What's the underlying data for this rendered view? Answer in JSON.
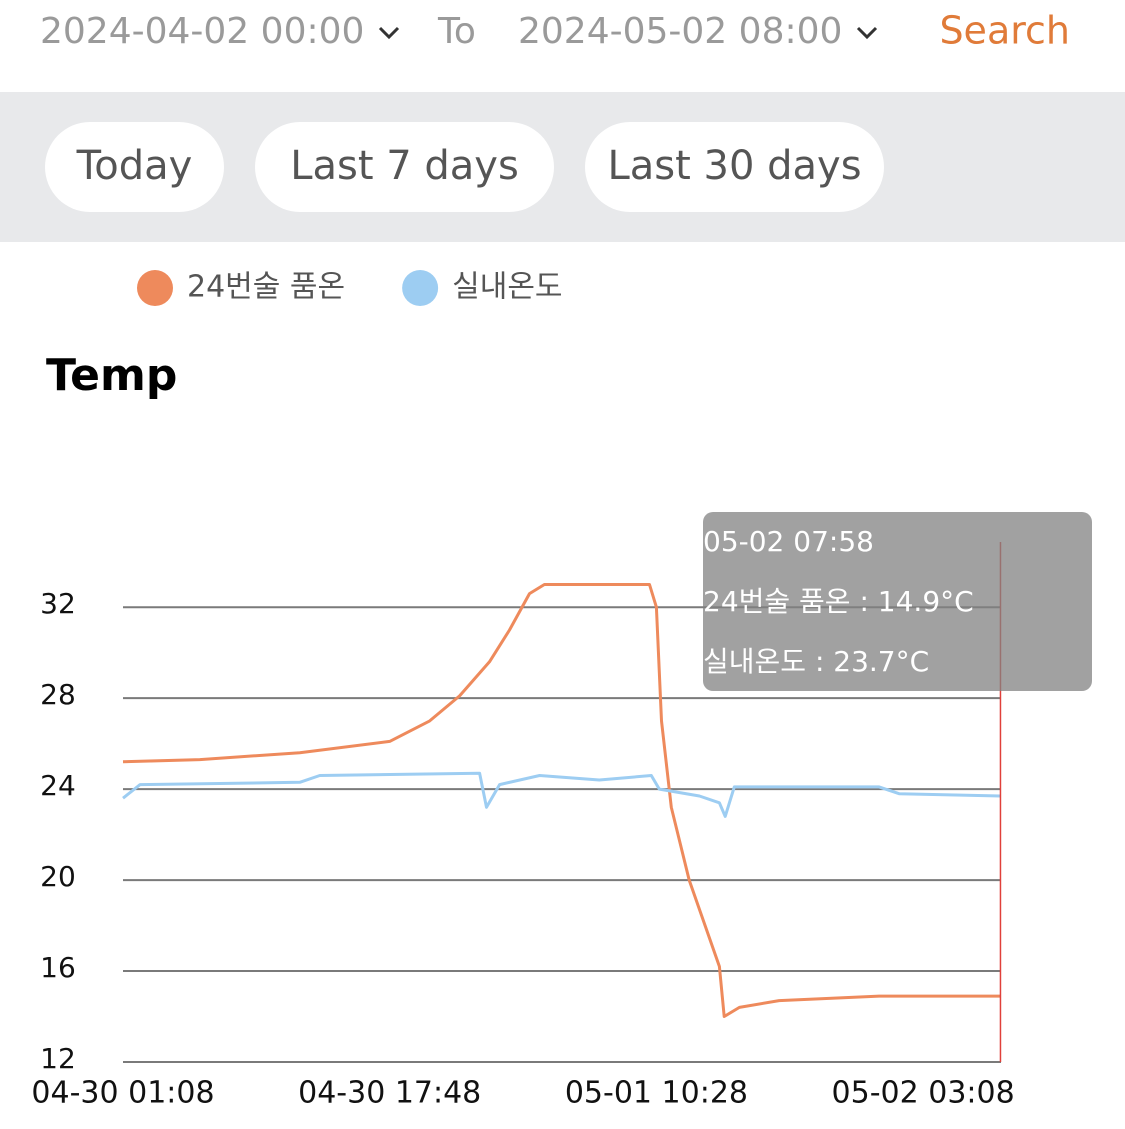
{
  "header": {
    "start": "2024-04-02 00:00",
    "to": "To",
    "end": "2024-05-02 08:00",
    "search": "Search"
  },
  "quick_ranges": [
    "Today",
    "Last 7 days",
    "Last 30 days"
  ],
  "chart_data": {
    "type": "line",
    "title": "Temp",
    "series": [
      {
        "name": "24번술 품온",
        "color": "#ee8a5c",
        "x": [
          "04-30 01:08",
          "04-30 05:56",
          "04-30 12:11",
          "04-30 17:48",
          "04-30 20:18",
          "04-30 22:10",
          "05-01 00:02",
          "05-01 01:17",
          "05-01 02:32",
          "05-01 03:28",
          "05-01 10:02",
          "05-01 10:28",
          "05-01 10:47",
          "05-01 11:24",
          "05-01 12:31",
          "05-01 14:24",
          "05-01 14:42",
          "05-01 15:39",
          "05-01 18:08",
          "05-02 00:23",
          "05-02 07:58"
        ],
        "values": [
          25.2,
          25.3,
          25.6,
          26.1,
          27.0,
          28.1,
          29.6,
          31.0,
          32.6,
          33.0,
          33.0,
          32.0,
          27.0,
          23.2,
          20.0,
          16.2,
          14.0,
          14.4,
          14.7,
          14.9,
          14.9
        ]
      },
      {
        "name": "실내온도",
        "color": "#9dcdf2",
        "x": [
          "04-30 01:08",
          "04-30 02:12",
          "04-30 12:11",
          "04-30 13:26",
          "04-30 23:25",
          "04-30 23:51",
          "05-01 00:40",
          "05-01 03:10",
          "05-01 06:54",
          "05-01 10:09",
          "05-01 10:39",
          "05-01 13:09",
          "05-01 14:24",
          "05-01 14:46",
          "05-01 15:20",
          "05-02 00:23",
          "05-02 01:38",
          "05-02 07:58"
        ],
        "values": [
          23.6,
          24.2,
          24.3,
          24.6,
          24.7,
          23.2,
          24.2,
          24.6,
          24.4,
          24.6,
          24.0,
          23.7,
          23.4,
          22.8,
          24.1,
          24.1,
          23.8,
          23.7
        ]
      }
    ],
    "xlim": [
      "04-30 01:08",
      "05-02 08:00"
    ],
    "xticks": [
      "04-30 01:08",
      "04-30 17:48",
      "05-01 10:28",
      "05-02 03:08"
    ],
    "ylim": [
      12,
      35
    ],
    "yticks": [
      12,
      16,
      20,
      24,
      28,
      32
    ],
    "grid": true,
    "tooltip": {
      "x": "05-02 07:58",
      "lines": [
        "05-02 07:58",
        "24번술 품온 : 14.9°C",
        "실내온도 : 23.7°C"
      ],
      "cursor_color": "#e0403a"
    }
  }
}
